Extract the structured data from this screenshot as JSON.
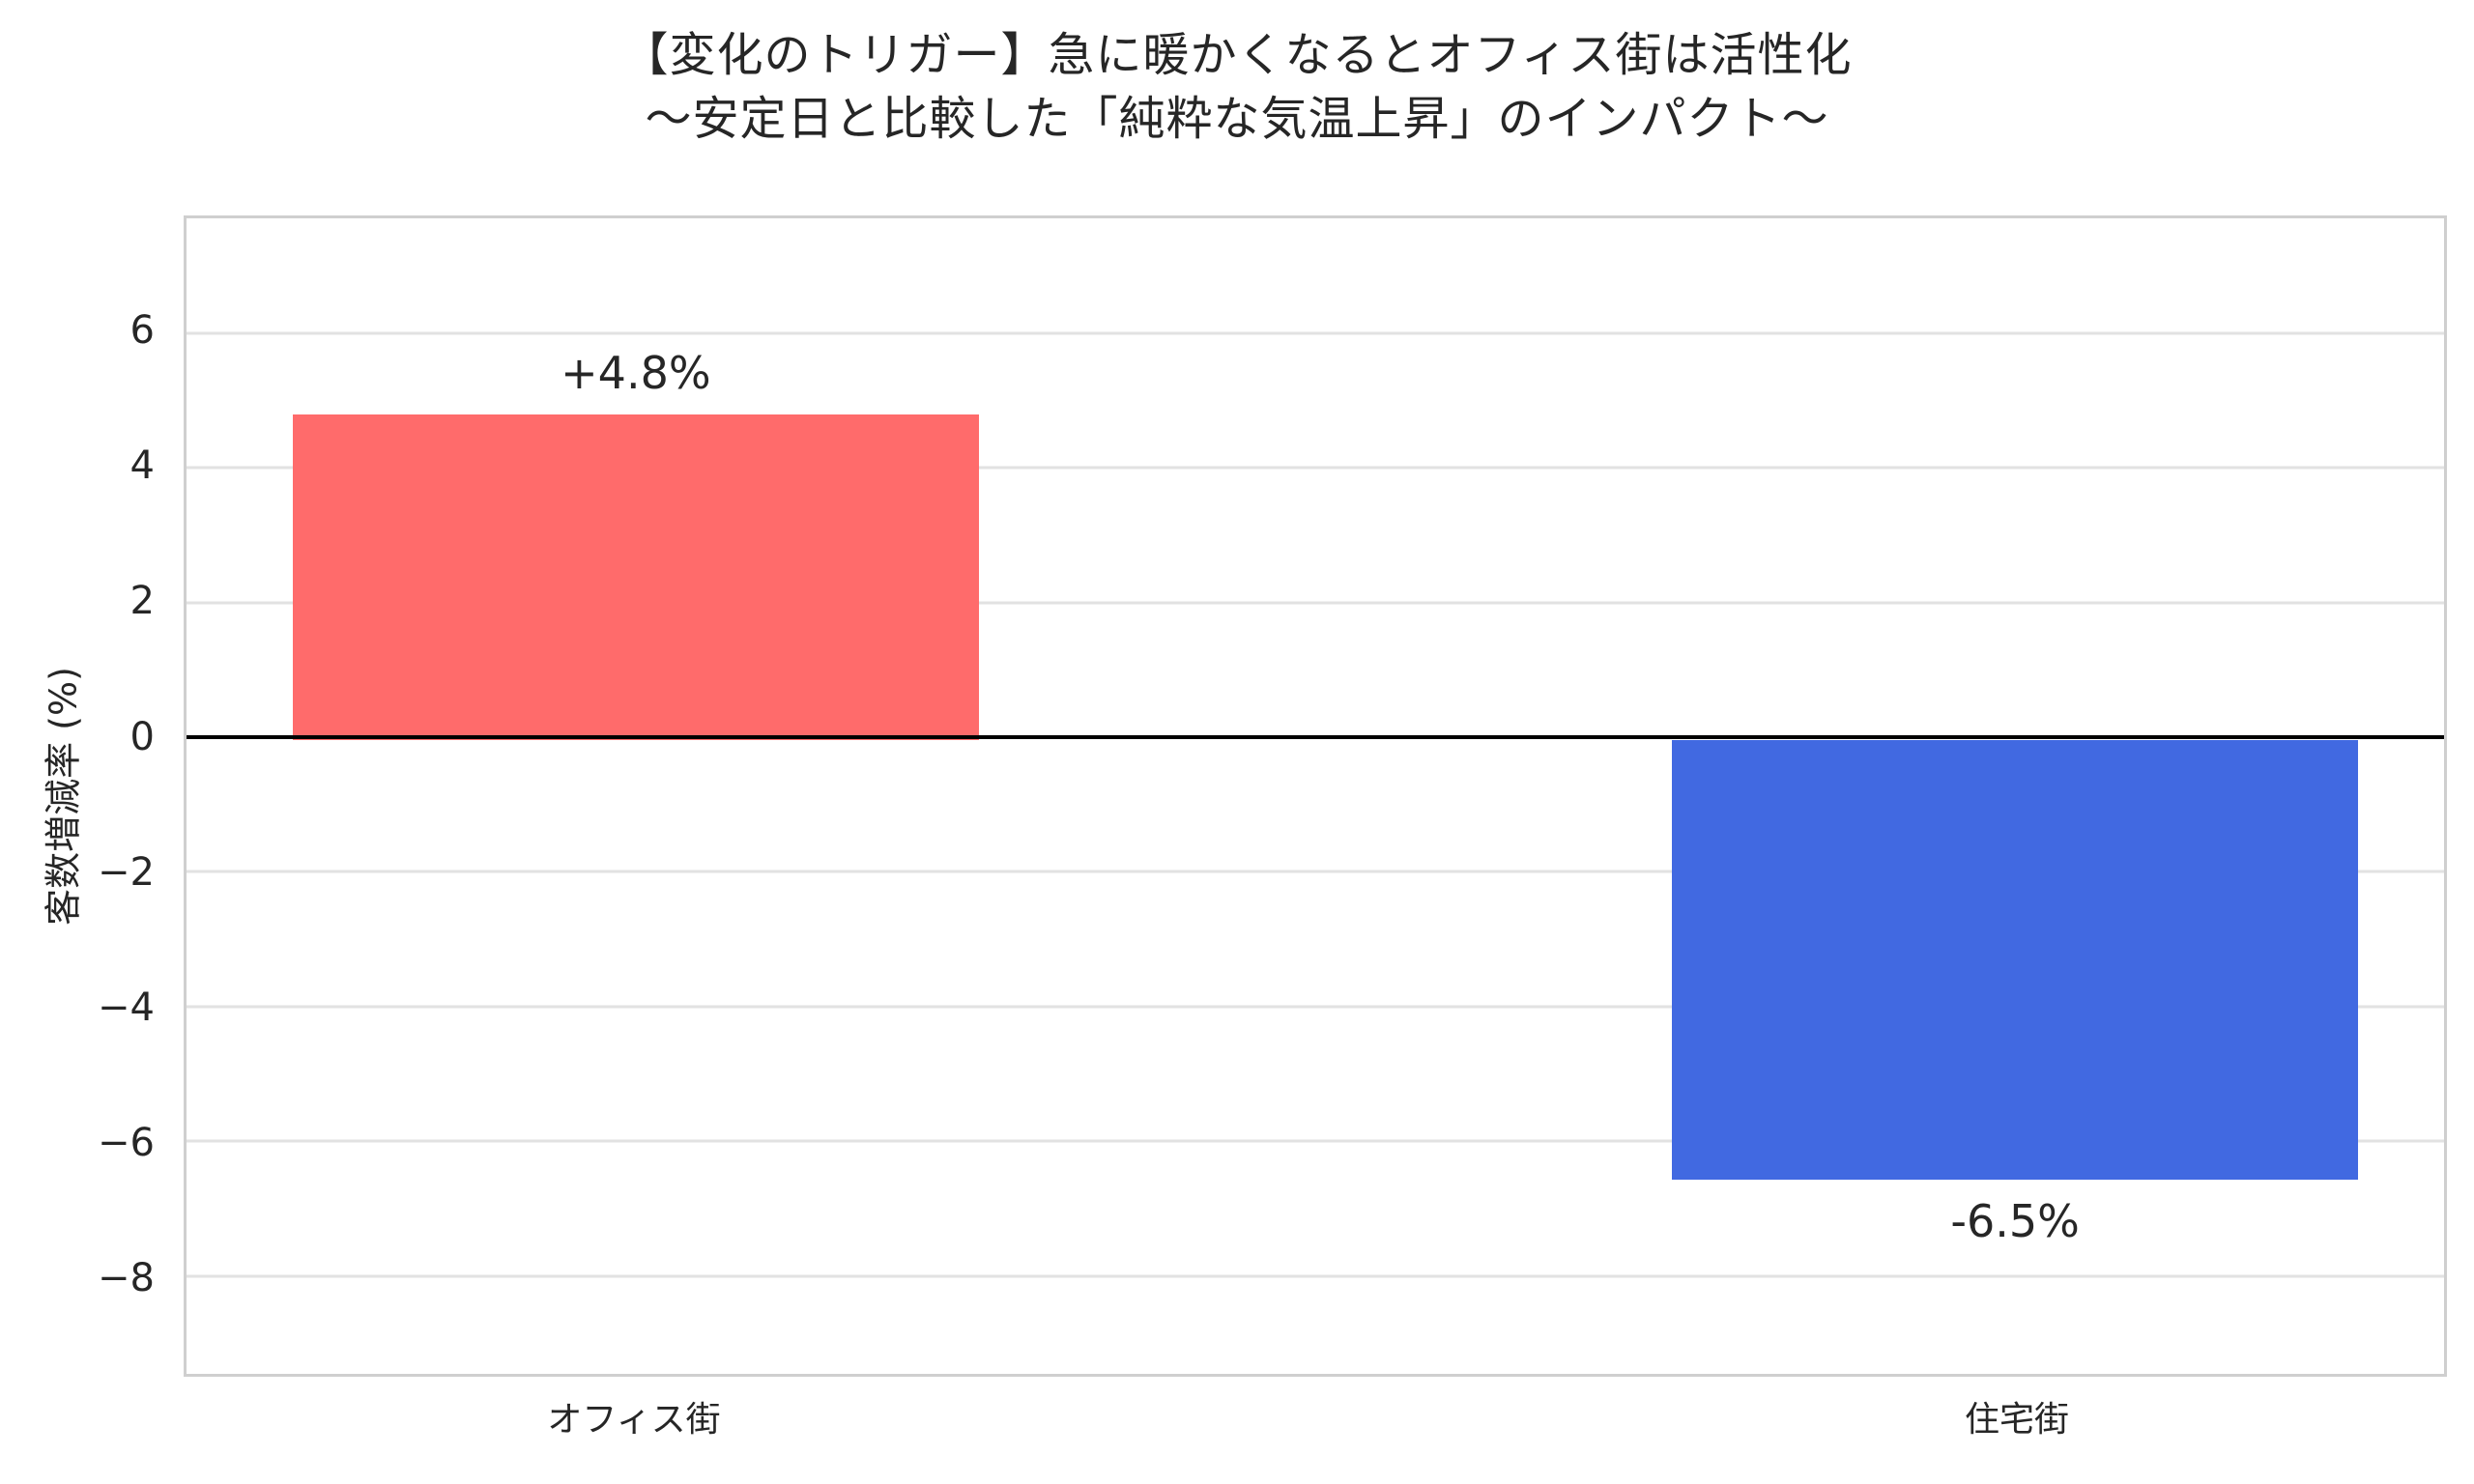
{
  "figure": {
    "title_line1": "【変化のトリガー】急に暖かくなるとオフィス街は活性化",
    "title_line2": "～安定日と比較した「純粋な気温上昇」のインパクト～"
  },
  "chart_data": {
    "type": "bar",
    "title": "【変化のトリガー】急に暖かくなるとオフィス街は活性化\n～安定日と比較した「純粋な気温上昇」のインパクト～",
    "categories": [
      "オフィス街",
      "住宅街"
    ],
    "values": [
      4.8,
      -6.5
    ],
    "bar_labels": [
      "+4.8%",
      "-6.5%"
    ],
    "bar_colors": [
      "#ff6b6b",
      "#4169e1"
    ],
    "xlabel": "",
    "ylabel": "客数増減率 (%)",
    "yticks": [
      6,
      4,
      2,
      0,
      -2,
      -4,
      -6,
      -8
    ],
    "ytick_labels": [
      "6",
      "4",
      "2",
      "0",
      "−2",
      "−4",
      "−6",
      "−8"
    ],
    "ylim": [
      -9.45,
      7.7
    ],
    "grid": true,
    "zero_line_value": 0,
    "legend": false,
    "colors": {
      "grid": "#e2e2e2",
      "axes_border": "#cfcfcf",
      "zero_line": "#000000",
      "text": "#262626",
      "background": "#ffffff"
    }
  }
}
